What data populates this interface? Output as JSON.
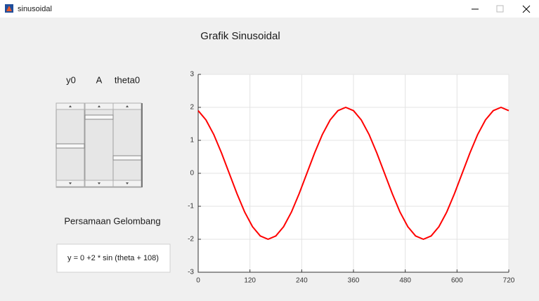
{
  "window": {
    "title": "sinusoidal"
  },
  "controls": {
    "slider_labels": [
      "y0",
      "A",
      "theta0"
    ],
    "equation_title": "Persamaan Gelombang",
    "equation": "y = 0 +2 * sin (theta + 108)"
  },
  "chart_data": {
    "type": "line",
    "title": "Grafik Sinusoidal",
    "color": "#ff0000",
    "grid": true,
    "x": [
      0,
      18,
      36,
      54,
      72,
      90,
      108,
      126,
      144,
      162,
      180,
      198,
      216,
      234,
      252,
      270,
      288,
      306,
      324,
      342,
      360,
      378,
      396,
      414,
      432,
      450,
      468,
      486,
      504,
      522,
      540,
      558,
      576,
      594,
      612,
      630,
      648,
      666,
      684,
      702,
      720
    ],
    "values": [
      1.9,
      1.62,
      1.18,
      0.62,
      0,
      -0.62,
      -1.18,
      -1.62,
      -1.9,
      -2,
      -1.9,
      -1.62,
      -1.18,
      -0.62,
      0,
      0.62,
      1.18,
      1.62,
      1.9,
      2,
      1.9,
      1.62,
      1.18,
      0.62,
      0,
      -0.62,
      -1.18,
      -1.62,
      -1.9,
      -2,
      -1.9,
      -1.62,
      -1.18,
      -0.62,
      0,
      0.62,
      1.18,
      1.62,
      1.9,
      2,
      1.9
    ],
    "xlim": [
      0,
      720
    ],
    "xticks": [
      0,
      120,
      240,
      360,
      480,
      600,
      720
    ],
    "ylim": [
      -3,
      3
    ],
    "yticks": [
      -3,
      -2,
      -1,
      0,
      1,
      2,
      3
    ]
  }
}
